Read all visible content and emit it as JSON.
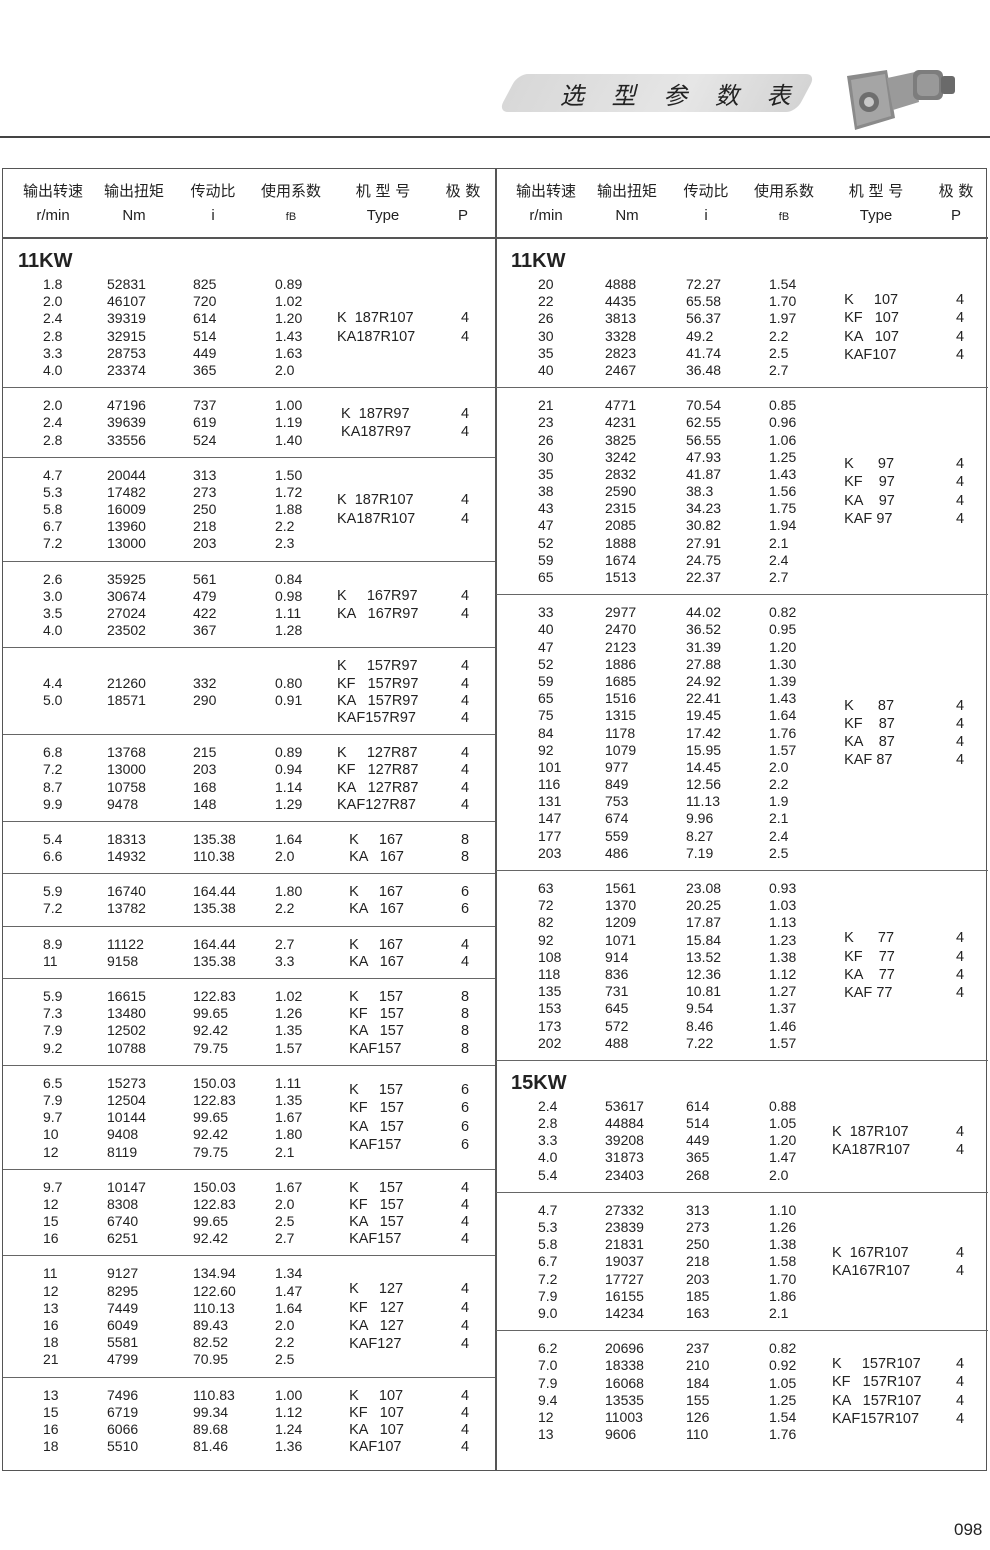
{
  "page_header": {
    "title": "选 型 参 数 表",
    "image": "gear-motor-photo"
  },
  "page_number": "098",
  "columns": [
    {
      "cn": "输出转速",
      "unit": "r/min"
    },
    {
      "cn": "输出扭矩",
      "unit": "Nm"
    },
    {
      "cn": "传动比",
      "unit": "i"
    },
    {
      "cn": "使用系数",
      "unit": "fB"
    },
    {
      "cn": "机 型 号",
      "unit": "Type"
    },
    {
      "cn": "极 数",
      "unit": "P"
    }
  ],
  "left": {
    "groups": [
      {
        "title": "11KW",
        "rows": [
          [
            "1.8",
            "52831",
            "825",
            "0.89"
          ],
          [
            "2.0",
            "46107",
            "720",
            "1.02"
          ],
          [
            "2.4",
            "39319",
            "614",
            "1.20"
          ],
          [
            "2.8",
            "32915",
            "514",
            "1.43"
          ],
          [
            "3.3",
            "28753",
            "449",
            "1.63"
          ],
          [
            "4.0",
            "23374",
            "365",
            "2.0"
          ]
        ],
        "types": [
          [
            "K  187R107",
            "4"
          ],
          [
            "KA187R107",
            "4"
          ]
        ]
      },
      {
        "rows": [
          [
            "2.0",
            "47196",
            "737",
            "1.00"
          ],
          [
            "2.4",
            "39639",
            "619",
            "1.19"
          ],
          [
            "2.8",
            "33556",
            "524",
            "1.40"
          ]
        ],
        "types": [
          [
            " K  187R97",
            "4"
          ],
          [
            " KA187R97",
            "4"
          ]
        ]
      },
      {
        "rows": [
          [
            "4.7",
            "20044",
            "313",
            "1.50"
          ],
          [
            "5.3",
            "17482",
            "273",
            "1.72"
          ],
          [
            "5.8",
            "16009",
            "250",
            "1.88"
          ],
          [
            "6.7",
            "13960",
            "218",
            "2.2"
          ],
          [
            "7.2",
            "13000",
            "203",
            "2.3"
          ]
        ],
        "types": [
          [
            "K  187R107",
            "4"
          ],
          [
            "KA187R107",
            "4"
          ]
        ]
      },
      {
        "rows": [
          [
            "2.6",
            "35925",
            "561",
            "0.84"
          ],
          [
            "3.0",
            "30674",
            "479",
            "0.98"
          ],
          [
            "3.5",
            "27024",
            "422",
            "1.11"
          ],
          [
            "4.0",
            "23502",
            "367",
            "1.28"
          ]
        ],
        "types": [
          [
            "K     167R97",
            "4"
          ],
          [
            "KA   167R97",
            "4"
          ]
        ]
      },
      {
        "rows": [
          [
            "",
            "",
            " ",
            ""
          ],
          [
            "4.4",
            "21260",
            "332",
            "0.80"
          ],
          [
            "5.0",
            "18571",
            "290",
            "0.91"
          ],
          [
            "",
            "",
            "",
            ""
          ]
        ],
        "types": [
          [
            "K     157R97",
            "4"
          ],
          [
            "KF   157R97",
            "4"
          ],
          [
            "KA   157R97",
            "4"
          ],
          [
            "KAF157R97",
            "4"
          ]
        ]
      },
      {
        "rows": [
          [
            "6.8",
            "13768",
            "215",
            "0.89"
          ],
          [
            "7.2",
            "13000",
            "203",
            "0.94"
          ],
          [
            "8.7",
            "10758",
            "168",
            "1.14"
          ],
          [
            "9.9",
            "9478",
            "148",
            "1.29"
          ]
        ],
        "types": [
          [
            "K     127R87",
            "4"
          ],
          [
            "KF   127R87",
            "4"
          ],
          [
            "KA   127R87",
            "4"
          ],
          [
            "KAF127R87",
            "4"
          ]
        ]
      },
      {
        "rows": [
          [
            "5.4",
            "18313",
            "135.38",
            "1.64"
          ],
          [
            "6.6",
            "14932",
            "110.38",
            "2.0"
          ]
        ],
        "types": [
          [
            "   K     167",
            "8"
          ],
          [
            "   KA   167",
            "8"
          ]
        ]
      },
      {
        "rows": [
          [
            "5.9",
            "16740",
            "164.44",
            "1.80"
          ],
          [
            "7.2",
            "13782",
            "135.38",
            "2.2"
          ]
        ],
        "types": [
          [
            "   K     167",
            "6"
          ],
          [
            "   KA   167",
            "6"
          ]
        ]
      },
      {
        "rows": [
          [
            "8.9",
            "11122",
            "164.44",
            "2.7"
          ],
          [
            "11",
            "9158",
            "135.38",
            "3.3"
          ]
        ],
        "types": [
          [
            "   K     167",
            "4"
          ],
          [
            "   KA   167",
            "4"
          ]
        ]
      },
      {
        "rows": [
          [
            "5.9",
            "16615",
            "122.83",
            "1.02"
          ],
          [
            "7.3",
            "13480",
            "99.65",
            "1.26"
          ],
          [
            "7.9",
            "12502",
            "92.42",
            "1.35"
          ],
          [
            "9.2",
            "10788",
            "79.75",
            "1.57"
          ]
        ],
        "types": [
          [
            "   K     157",
            "8"
          ],
          [
            "   KF   157",
            "8"
          ],
          [
            "   KA   157",
            "8"
          ],
          [
            "   KAF157",
            "8"
          ]
        ]
      },
      {
        "rows": [
          [
            "6.5",
            "15273",
            "150.03",
            "1.11"
          ],
          [
            "7.9",
            "12504",
            "122.83",
            "1.35"
          ],
          [
            "9.7",
            "10144",
            "99.65",
            "1.67"
          ],
          [
            "10",
            "9408",
            "92.42",
            "1.80"
          ],
          [
            "12",
            "8119",
            "79.75",
            "2.1"
          ]
        ],
        "types": [
          [
            "   K     157",
            "6"
          ],
          [
            "   KF   157",
            "6"
          ],
          [
            "   KA   157",
            "6"
          ],
          [
            "   KAF157",
            "6"
          ]
        ]
      },
      {
        "rows": [
          [
            "9.7",
            "10147",
            "150.03",
            "1.67"
          ],
          [
            "12",
            "8308",
            "122.83",
            "2.0"
          ],
          [
            "15",
            "6740",
            "99.65",
            "2.5"
          ],
          [
            "16",
            "6251",
            "92.42",
            "2.7"
          ]
        ],
        "types": [
          [
            "   K     157",
            "4"
          ],
          [
            "   KF   157",
            "4"
          ],
          [
            "   KA   157",
            "4"
          ],
          [
            "   KAF157",
            "4"
          ]
        ]
      },
      {
        "rows": [
          [
            "11",
            "9127",
            "134.94",
            "1.34"
          ],
          [
            "12",
            "8295",
            "122.60",
            "1.47"
          ],
          [
            "13",
            "7449",
            "110.13",
            "1.64"
          ],
          [
            "16",
            "6049",
            "89.43",
            "2.0"
          ],
          [
            "18",
            "5581",
            "82.52",
            "2.2"
          ],
          [
            "21",
            "4799",
            "70.95",
            "2.5"
          ]
        ],
        "types": [
          [
            "   K     127",
            "4"
          ],
          [
            "   KF   127",
            "4"
          ],
          [
            "   KA   127",
            "4"
          ],
          [
            "   KAF127",
            "4"
          ]
        ]
      },
      {
        "rows": [
          [
            "13",
            "7496",
            "110.83",
            "1.00"
          ],
          [
            "15",
            "6719",
            "99.34",
            "1.12"
          ],
          [
            "16",
            "6066",
            "89.68",
            "1.24"
          ],
          [
            "18",
            "5510",
            "81.46",
            "1.36"
          ]
        ],
        "types": [
          [
            "   K     107",
            "4"
          ],
          [
            "   KF   107",
            "4"
          ],
          [
            "   KA   107",
            "4"
          ],
          [
            "   KAF107",
            "4"
          ]
        ]
      }
    ]
  },
  "right": {
    "groups": [
      {
        "title": "11KW",
        "rows": [
          [
            "20",
            "4888",
            "72.27",
            "1.54"
          ],
          [
            "22",
            "4435",
            "65.58",
            "1.70"
          ],
          [
            "26",
            "3813",
            "56.37",
            "1.97"
          ],
          [
            "30",
            "3328",
            "49.2",
            "2.2"
          ],
          [
            "35",
            "2823",
            "41.74",
            "2.5"
          ],
          [
            "40",
            "2467",
            "36.48",
            "2.7"
          ]
        ],
        "types": [
          [
            "   K     107",
            "4"
          ],
          [
            "   KF   107",
            "4"
          ],
          [
            "   KA   107",
            "4"
          ],
          [
            "   KAF107",
            "4"
          ]
        ]
      },
      {
        "rows": [
          [
            "21",
            "4771",
            "70.54",
            "0.85"
          ],
          [
            "23",
            "4231",
            "62.55",
            "0.96"
          ],
          [
            "26",
            "3825",
            "56.55",
            "1.06"
          ],
          [
            "30",
            "3242",
            "47.93",
            "1.25"
          ],
          [
            "35",
            "2832",
            "41.87",
            "1.43"
          ],
          [
            "38",
            "2590",
            "38.3",
            "1.56"
          ],
          [
            "43",
            "2315",
            "34.23",
            "1.75"
          ],
          [
            "47",
            "2085",
            "30.82",
            "1.94"
          ],
          [
            "52",
            "1888",
            "27.91",
            "2.1"
          ],
          [
            "59",
            "1674",
            "24.75",
            "2.4"
          ],
          [
            "65",
            "1513",
            "22.37",
            "2.7"
          ]
        ],
        "types": [
          [
            "   K      97",
            "4"
          ],
          [
            "   KF    97",
            "4"
          ],
          [
            "   KA    97",
            "4"
          ],
          [
            "   KAF 97",
            "4"
          ]
        ]
      },
      {
        "rows": [
          [
            "33",
            "2977",
            "44.02",
            "0.82"
          ],
          [
            "40",
            "2470",
            "36.52",
            "0.95"
          ],
          [
            "47",
            "2123",
            "31.39",
            "1.20"
          ],
          [
            "52",
            "1886",
            "27.88",
            "1.30"
          ],
          [
            "59",
            "1685",
            "24.92",
            "1.39"
          ],
          [
            "65",
            "1516",
            "22.41",
            "1.43"
          ],
          [
            "75",
            "1315",
            "19.45",
            "1.64"
          ],
          [
            "84",
            "1178",
            "17.42",
            "1.76"
          ],
          [
            "92",
            "1079",
            "15.95",
            "1.57"
          ],
          [
            "101",
            "977",
            "14.45",
            "2.0"
          ],
          [
            "116",
            "849",
            "12.56",
            "2.2"
          ],
          [
            "131",
            "753",
            "11.13",
            "1.9"
          ],
          [
            "147",
            "674",
            "9.96",
            "2.1"
          ],
          [
            "177",
            "559",
            "8.27",
            "2.4"
          ],
          [
            "203",
            "486",
            "7.19",
            "2.5"
          ]
        ],
        "types": [
          [
            "   K      87",
            "4"
          ],
          [
            "   KF    87",
            "4"
          ],
          [
            "   KA    87",
            "4"
          ],
          [
            "   KAF 87",
            "4"
          ]
        ]
      },
      {
        "rows": [
          [
            "63",
            "1561",
            "23.08",
            "0.93"
          ],
          [
            "72",
            "1370",
            "20.25",
            "1.03"
          ],
          [
            "82",
            "1209",
            "17.87",
            "1.13"
          ],
          [
            "92",
            "1071",
            "15.84",
            "1.23"
          ],
          [
            "108",
            "914",
            "13.52",
            "1.38"
          ],
          [
            "118",
            "836",
            "12.36",
            "1.12"
          ],
          [
            "135",
            "731",
            "10.81",
            "1.27"
          ],
          [
            "153",
            "645",
            "9.54",
            "1.37"
          ],
          [
            "173",
            "572",
            "8.46",
            "1.46"
          ],
          [
            "202",
            "488",
            "7.22",
            "1.57"
          ]
        ],
        "types": [
          [
            "   K      77",
            "4"
          ],
          [
            "   KF    77",
            "4"
          ],
          [
            "   KA    77",
            "4"
          ],
          [
            "   KAF 77",
            "4"
          ]
        ]
      },
      {
        "title": "15KW",
        "rows": [
          [
            "2.4",
            "53617",
            "614",
            "0.88"
          ],
          [
            "2.8",
            "44884",
            "514",
            "1.05"
          ],
          [
            "3.3",
            "39208",
            "449",
            "1.20"
          ],
          [
            "4.0",
            "31873",
            "365",
            "1.47"
          ],
          [
            "5.4",
            "23403",
            "268",
            "2.0"
          ]
        ],
        "types": [
          [
            "K  187R107",
            "4"
          ],
          [
            "KA187R107",
            "4"
          ]
        ]
      },
      {
        "rows": [
          [
            "4.7",
            "27332",
            "313",
            "1.10"
          ],
          [
            "5.3",
            "23839",
            "273",
            "1.26"
          ],
          [
            "5.8",
            "21831",
            "250",
            "1.38"
          ],
          [
            "6.7",
            "19037",
            "218",
            "1.58"
          ],
          [
            "7.2",
            "17727",
            "203",
            "1.70"
          ],
          [
            "7.9",
            "16155",
            "185",
            "1.86"
          ],
          [
            "9.0",
            "14234",
            "163",
            "2.1"
          ]
        ],
        "types": [
          [
            "K  167R107",
            "4"
          ],
          [
            "KA167R107",
            "4"
          ]
        ]
      },
      {
        "rows": [
          [
            "6.2",
            "20696",
            "237",
            "0.82"
          ],
          [
            "7.0",
            "18338",
            "210",
            "0.92"
          ],
          [
            "7.9",
            "16068",
            "184",
            "1.05"
          ],
          [
            "9.4",
            "13535",
            "155",
            "1.25"
          ],
          [
            "12",
            "11003",
            "126",
            "1.54"
          ],
          [
            "13",
            "9606",
            "110",
            "1.76"
          ]
        ],
        "types": [
          [
            "K     157R107",
            "4"
          ],
          [
            "KF   157R107",
            "4"
          ],
          [
            "KA   157R107",
            "4"
          ],
          [
            "KAF157R107",
            "4"
          ]
        ]
      }
    ]
  }
}
